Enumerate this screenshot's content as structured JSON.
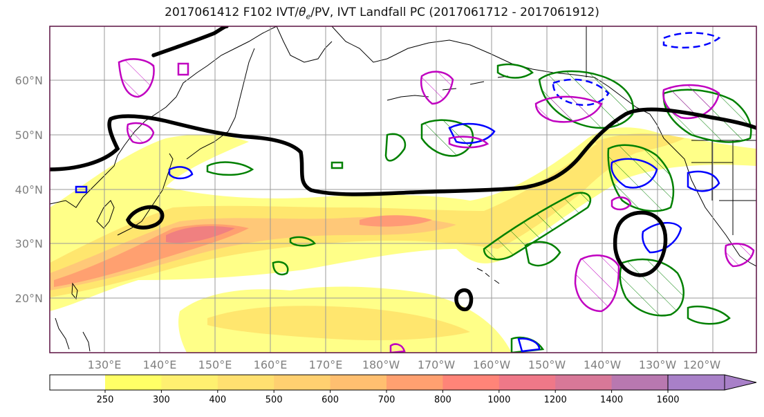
{
  "title": {
    "main": "2017061412 F102 IVT/",
    "theta": "θ",
    "theta_sub": "e",
    "rest": "/PV, IVT Landfall PC (2017061712 - 2017061912)"
  },
  "lat_labels": [
    "60°N",
    "50°N",
    "40°N",
    "30°N",
    "20°N"
  ],
  "lon_labels": [
    "130°E",
    "140°E",
    "150°E",
    "160°E",
    "170°E",
    "180°W",
    "170°W",
    "160°W",
    "150°W",
    "140°W",
    "130°W",
    "120°W"
  ],
  "colorbar": {
    "ticks": [
      "250",
      "300",
      "400",
      "500",
      "600",
      "700",
      "800",
      "1000",
      "1200",
      "1400",
      "1600"
    ],
    "colors": [
      "#ffff66",
      "#fff070",
      "#ffe070",
      "#ffd070",
      "#ffbf70",
      "#ffa070",
      "#ff8478",
      "#ef7888",
      "#d87898",
      "#b878b0",
      "#a880c8"
    ],
    "extend": "max"
  },
  "colors": {
    "pc_contour": "#000000",
    "positive_pv": "#008000",
    "negative_pv": "#0000ff",
    "theta_e": "#c000c0",
    "frame": "#5a1040",
    "gridline": "#9a9a9a"
  }
}
